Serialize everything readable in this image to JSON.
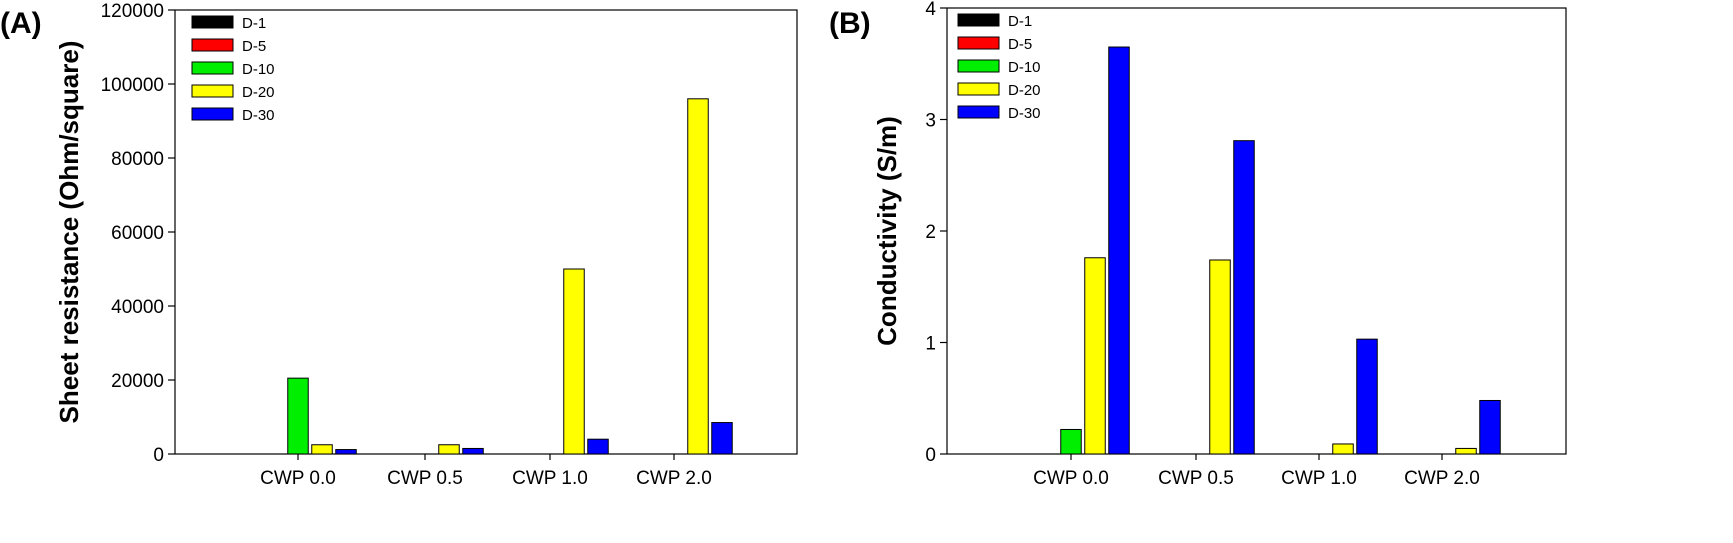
{
  "chart_data": [
    {
      "panel_label": "(A)",
      "type": "bar",
      "categories": [
        "CWP 0.0",
        "CWP 0.5",
        "CWP 1.0",
        "CWP 2.0"
      ],
      "ylabel": "Sheet resistance (Ohm/square)",
      "ylim": [
        0,
        120000
      ],
      "yticks": [
        "0",
        "20000",
        "40000",
        "60000",
        "80000",
        "100000",
        "120000"
      ],
      "ytick_values": [
        0,
        20000,
        40000,
        60000,
        80000,
        100000,
        120000
      ],
      "legend_position": "top-left",
      "grid": false,
      "series": [
        {
          "name": "D-1",
          "color": "#000000",
          "values": [
            0,
            0,
            0,
            0
          ]
        },
        {
          "name": "D-5",
          "color": "#ff0000",
          "values": [
            0,
            0,
            0,
            0
          ]
        },
        {
          "name": "D-10",
          "color": "#00ee00",
          "values": [
            20500,
            0,
            0,
            0
          ]
        },
        {
          "name": "D-20",
          "color": "#ffff00",
          "values": [
            2500,
            2500,
            50000,
            96000
          ]
        },
        {
          "name": "D-30",
          "color": "#0000ff",
          "values": [
            1200,
            1500,
            4000,
            8500
          ]
        }
      ]
    },
    {
      "panel_label": "(B)",
      "type": "bar",
      "categories": [
        "CWP 0.0",
        "CWP 0.5",
        "CWP 1.0",
        "CWP 2.0"
      ],
      "ylabel": "Conductivity (S/m)",
      "ylim": [
        0,
        4
      ],
      "yticks": [
        "0",
        "1",
        "2",
        "3",
        "4"
      ],
      "ytick_values": [
        0,
        1,
        2,
        3,
        4
      ],
      "legend_position": "top-left",
      "grid": false,
      "series": [
        {
          "name": "D-1",
          "color": "#000000",
          "values": [
            0,
            0,
            0,
            0
          ]
        },
        {
          "name": "D-5",
          "color": "#ff0000",
          "values": [
            0,
            0,
            0,
            0
          ]
        },
        {
          "name": "D-10",
          "color": "#00ee00",
          "values": [
            0.22,
            0,
            0,
            0
          ]
        },
        {
          "name": "D-20",
          "color": "#ffff00",
          "values": [
            1.76,
            1.74,
            0.09,
            0.05
          ]
        },
        {
          "name": "D-30",
          "color": "#0000ff",
          "values": [
            3.65,
            2.81,
            1.03,
            0.48
          ]
        }
      ]
    }
  ]
}
